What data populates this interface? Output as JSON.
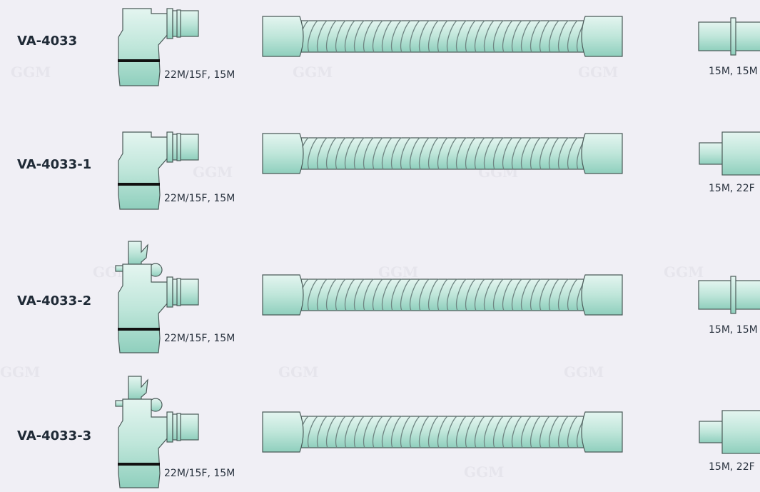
{
  "watermark": "GGM",
  "rows": [
    {
      "model": "VA-4033",
      "elbow_label": "22M/15F, 15M",
      "end_label": "15M, 15M"
    },
    {
      "model": "VA-4033-1",
      "elbow_label": "22M/15F, 15M",
      "end_label": "15M, 22F"
    },
    {
      "model": "VA-4033-2",
      "elbow_label": "22M/15F, 15M",
      "end_label": "15M, 15M"
    },
    {
      "model": "VA-4033-3",
      "elbow_label": "22M/15F, 15M",
      "end_label": "15M, 22F"
    }
  ]
}
